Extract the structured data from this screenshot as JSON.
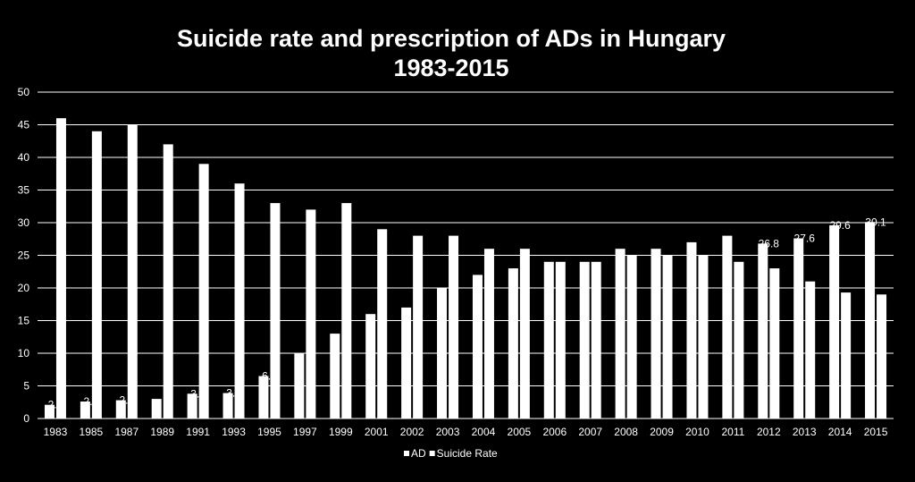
{
  "chart_data": {
    "type": "bar",
    "title_lines": [
      "Suicide rate and prescription of ADs in Hungary",
      "1983-2015"
    ],
    "xlabel": "",
    "ylabel": "",
    "ylim": [
      0,
      50
    ],
    "yticks": [
      "0",
      "5",
      "10",
      "15",
      "20",
      "25",
      "30",
      "35",
      "40",
      "45",
      "50"
    ],
    "grid": true,
    "legend_position": "bottom",
    "categories": [
      "1983",
      "1985",
      "1987",
      "1989",
      "1991",
      "1993",
      "1995",
      "1997",
      "1999",
      "2001",
      "2002",
      "2003",
      "2004",
      "2005",
      "2006",
      "2007",
      "2008",
      "2009",
      "2010",
      "2011",
      "2012",
      "2013",
      "2014",
      "2015"
    ],
    "series": [
      {
        "name": "AD",
        "color": "#ffffff",
        "values": [
          2.1,
          2.6,
          2.8,
          3,
          3.8,
          3.9,
          6.5,
          10,
          13,
          16,
          17,
          20,
          22,
          23,
          24,
          24,
          26,
          26,
          27,
          28,
          26.8,
          27.6,
          29.6,
          30.1
        ],
        "labels": [
          "2.1",
          "2.6",
          "2.8",
          "",
          "3.8",
          "3.9",
          "6.5",
          "",
          "",
          "",
          "",
          "",
          "",
          "",
          "",
          "",
          "",
          "",
          "",
          "",
          "26.8",
          "27.6",
          "29.6",
          "30.1"
        ]
      },
      {
        "name": "Suicide Rate",
        "color": "#ffffff",
        "values": [
          46,
          44,
          45,
          42,
          39,
          36,
          33,
          32,
          33,
          29,
          28,
          28,
          26,
          26,
          24,
          24,
          25,
          25,
          25,
          24,
          23,
          21,
          19.3,
          19
        ],
        "labels": []
      }
    ]
  }
}
